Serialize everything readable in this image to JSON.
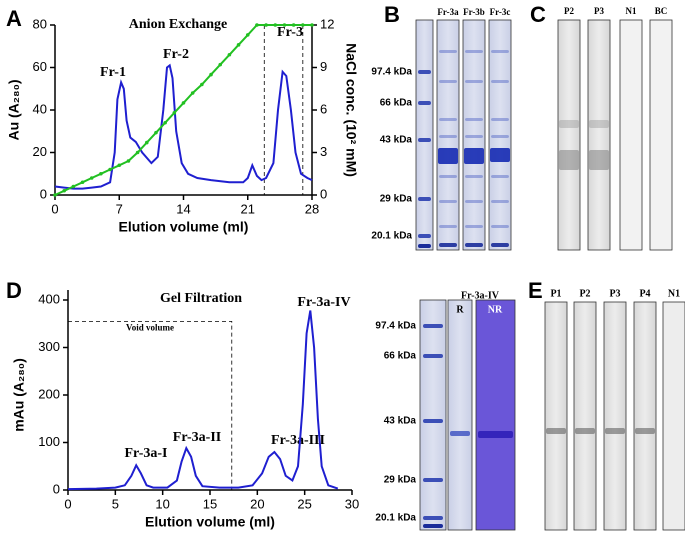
{
  "chart_data": [
    {
      "type": "line",
      "title": "Anion Exchange",
      "x_label": "Elution volume (ml)",
      "y_label": "Au (A₂₈₀)",
      "y2_label": "NaCl conc. (10² mM)",
      "xlim": [
        0,
        28
      ],
      "xticks": [
        0,
        7,
        14,
        21,
        28
      ],
      "ylim": [
        0,
        80
      ],
      "yticks": [
        0,
        20,
        40,
        60,
        80
      ],
      "y2lim": [
        0,
        12
      ],
      "y2ticks": [
        0,
        3,
        6,
        9,
        12
      ],
      "annotations": [
        "Fr-1",
        "Fr-2",
        "Fr-3"
      ],
      "vlines": [
        22.8,
        27
      ],
      "series": [
        {
          "color": "#1f1fd0",
          "x": [
            0,
            1,
            2,
            3,
            4,
            5,
            6,
            6.5,
            6.8,
            7.2,
            7.5,
            7.8,
            8.2,
            8.8,
            9.5,
            10.5,
            11.2,
            11.8,
            12.2,
            12.5,
            12.8,
            13.2,
            13.8,
            14.5,
            15.5,
            17,
            19,
            20.5,
            21,
            21.5,
            22,
            22.5,
            23,
            23.8,
            24.3,
            24.8,
            25.2,
            25.7,
            26.2,
            26.8,
            27.5,
            28
          ],
          "values": [
            4,
            3.5,
            3,
            3,
            3.5,
            4,
            6,
            20,
            45,
            53,
            50,
            35,
            27,
            25,
            20,
            15,
            18,
            40,
            60,
            61,
            55,
            30,
            15,
            10,
            8,
            7,
            6,
            6,
            8,
            14,
            9,
            7,
            8,
            15,
            40,
            58,
            56,
            40,
            20,
            10,
            8,
            7
          ]
        },
        {
          "color": "#22c022",
          "axis": "y2",
          "marker": "circle",
          "x": [
            0,
            1,
            2,
            3,
            4,
            5,
            6,
            7,
            8,
            9,
            10,
            11,
            12,
            13,
            14,
            15,
            16,
            17,
            18,
            19,
            20,
            21,
            22,
            23,
            24,
            25,
            26,
            27,
            28
          ],
          "values": [
            0,
            0.3,
            0.6,
            0.9,
            1.2,
            1.5,
            1.8,
            2.1,
            2.4,
            3,
            3.7,
            4.4,
            5.1,
            5.8,
            6.5,
            7.2,
            7.8,
            8.5,
            9.2,
            9.9,
            10.6,
            11.3,
            12,
            12,
            12,
            12,
            12,
            12,
            12
          ]
        }
      ]
    },
    {
      "type": "line",
      "title": "Gel Filtration",
      "x_label": "Elution volume (ml)",
      "y_label": "mAu (A₂₈₀)",
      "xlim": [
        0,
        30
      ],
      "xticks": [
        0,
        5,
        10,
        15,
        20,
        25,
        30
      ],
      "ylim": [
        0,
        400
      ],
      "yticks": [
        0,
        100,
        200,
        300,
        400
      ],
      "annotations": [
        "Fr-3a-I",
        "Fr-3a-II",
        "Fr-3a-III",
        "Fr-3a-IV"
      ],
      "void": {
        "label": "Void volume",
        "x": 17.3,
        "y": 355
      },
      "series": [
        {
          "color": "#1f1fd0",
          "x": [
            0,
            3,
            5,
            6,
            6.7,
            7.2,
            7.7,
            8.3,
            9,
            10.5,
            11.5,
            12,
            12.5,
            13,
            13.5,
            14.2,
            16,
            18,
            19.5,
            20.5,
            21.2,
            21.8,
            22.4,
            23,
            23.7,
            24.3,
            24.8,
            25.2,
            25.6,
            26,
            26.4,
            26.8,
            27.5,
            28.5
          ],
          "values": [
            2,
            3,
            5,
            10,
            30,
            52,
            35,
            10,
            5,
            5,
            20,
            60,
            88,
            70,
            30,
            8,
            5,
            5,
            10,
            35,
            70,
            80,
            65,
            30,
            20,
            50,
            180,
            330,
            378,
            300,
            150,
            50,
            10,
            3
          ]
        }
      ]
    }
  ],
  "letters": [
    "A",
    "B",
    "C",
    "D",
    "E"
  ],
  "gels": {
    "B": {
      "lanes": [
        "Fr-3a",
        "Fr-3b",
        "Fr-3c"
      ],
      "markers": [
        "97.4 kDa",
        "66 kDa",
        "43 kDa",
        "29 kDa",
        "20.1 kDa"
      ]
    },
    "C": {
      "lanes": [
        "P2",
        "P3",
        "N1",
        "BC"
      ]
    },
    "D": {
      "header": "Fr-3a-IV",
      "lanes": [
        "R",
        "NR"
      ],
      "markers": [
        "97.4 kDa",
        "66 kDa",
        "43 kDa",
        "29 kDa",
        "20.1 kDa"
      ]
    },
    "E": {
      "lanes": [
        "P1",
        "P2",
        "P3",
        "P4",
        "N1"
      ]
    }
  }
}
